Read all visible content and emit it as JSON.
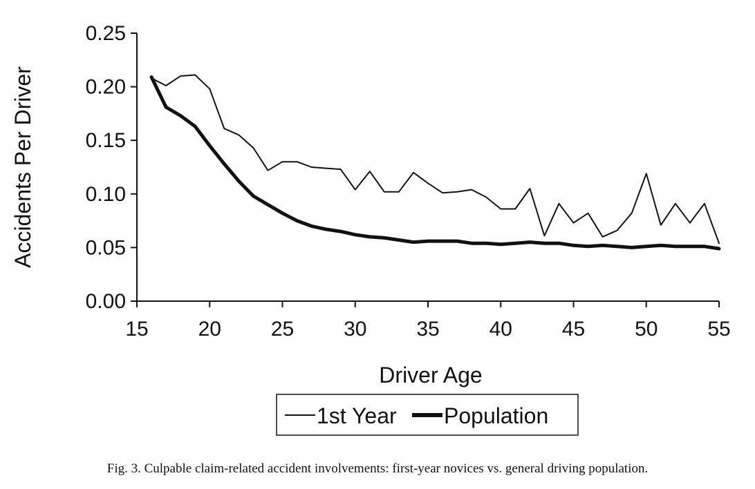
{
  "chart_data": {
    "type": "line",
    "xlabel": "Driver Age",
    "ylabel": "Accidents Per Driver",
    "xlim": [
      15,
      55
    ],
    "ylim": [
      0,
      0.25
    ],
    "x_ticks": [
      15,
      20,
      25,
      30,
      35,
      40,
      45,
      50,
      55
    ],
    "y_ticks": [
      "0.00",
      "0.05",
      "0.10",
      "0.15",
      "0.20",
      "0.25"
    ],
    "grid": false,
    "legend_position": "bottom",
    "x": [
      16,
      17,
      18,
      19,
      20,
      21,
      22,
      23,
      24,
      25,
      26,
      27,
      28,
      29,
      30,
      31,
      32,
      33,
      34,
      35,
      36,
      37,
      38,
      39,
      40,
      41,
      42,
      43,
      44,
      45,
      46,
      47,
      48,
      49,
      50,
      51,
      52,
      53,
      54,
      55
    ],
    "series": [
      {
        "name": "1st Year",
        "style": "thin",
        "values": [
          0.208,
          0.201,
          0.21,
          0.211,
          0.198,
          0.161,
          0.155,
          0.143,
          0.122,
          0.13,
          0.13,
          0.125,
          0.124,
          0.123,
          0.104,
          0.121,
          0.102,
          0.102,
          0.12,
          0.11,
          0.101,
          0.102,
          0.104,
          0.097,
          0.086,
          0.086,
          0.105,
          0.061,
          0.091,
          0.073,
          0.082,
          0.06,
          0.066,
          0.082,
          0.119,
          0.071,
          0.091,
          0.073,
          0.091,
          0.054
        ]
      },
      {
        "name": "Population",
        "style": "thick",
        "values": [
          0.209,
          0.181,
          0.173,
          0.163,
          0.145,
          0.128,
          0.112,
          0.098,
          0.09,
          0.082,
          0.075,
          0.07,
          0.067,
          0.065,
          0.062,
          0.06,
          0.059,
          0.057,
          0.055,
          0.056,
          0.056,
          0.056,
          0.054,
          0.054,
          0.053,
          0.054,
          0.055,
          0.054,
          0.054,
          0.052,
          0.051,
          0.052,
          0.051,
          0.05,
          0.051,
          0.052,
          0.051,
          0.051,
          0.051,
          0.049
        ]
      }
    ]
  },
  "caption": "Fig. 3. Culpable claim-related accident involvements: first-year novices vs. general driving population."
}
